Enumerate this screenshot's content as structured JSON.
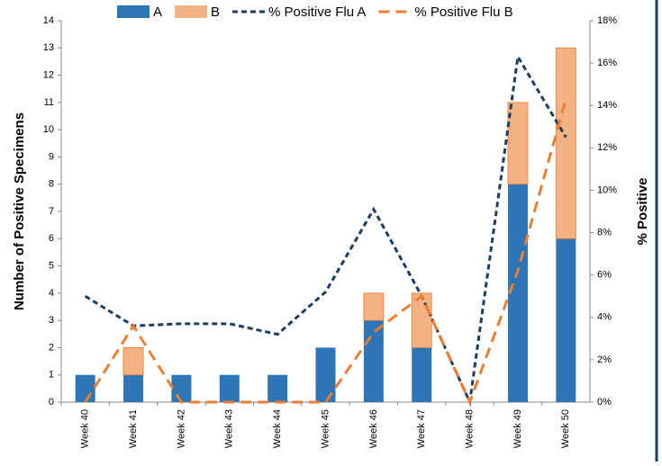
{
  "chart_data": {
    "type": "bar",
    "stacked": true,
    "categories": [
      "Week 40",
      "Week 41",
      "Week 42",
      "Week 43",
      "Week 44",
      "Week 45",
      "Week 46",
      "Week 47",
      "Week 48",
      "Week 49",
      "Week 50"
    ],
    "series": [
      {
        "name": "A",
        "color": "#2e75b6",
        "values": [
          1,
          1,
          1,
          1,
          1,
          2,
          3,
          2,
          0,
          8,
          6
        ]
      },
      {
        "name": "B",
        "color": "#f4b183",
        "values": [
          0,
          1,
          0,
          0,
          0,
          0,
          1,
          2,
          0,
          3,
          7
        ]
      },
      {
        "name": "% Positive Flu A",
        "type": "line",
        "axis": "y2",
        "color": "#1f3d5c",
        "values": [
          5.0,
          3.6,
          3.7,
          3.7,
          3.2,
          5.2,
          9.1,
          5.0,
          0,
          16.3,
          12.5
        ]
      },
      {
        "name": "% Positive Flu B",
        "type": "line",
        "axis": "y2",
        "color": "#ed7d31",
        "values": [
          0,
          3.6,
          0,
          0,
          0,
          0,
          3.3,
          5.0,
          0,
          6.2,
          14.3
        ]
      }
    ],
    "ylabel": "Number of Positive Specimens",
    "y2label": "% Positive",
    "ylim": [
      0,
      14
    ],
    "yticks": [
      0,
      1,
      2,
      3,
      4,
      5,
      6,
      7,
      8,
      9,
      10,
      11,
      12,
      13,
      14
    ],
    "y2lim": [
      0,
      18
    ],
    "y2ticks": [
      {
        "value": 0,
        "label": "0%"
      },
      {
        "value": 2,
        "label": "2%"
      },
      {
        "value": 4,
        "label": "4%"
      },
      {
        "value": 6,
        "label": "6%"
      },
      {
        "value": 8,
        "label": "8%"
      },
      {
        "value": 10,
        "label": "10%"
      },
      {
        "value": 12,
        "label": "12%"
      },
      {
        "value": 14,
        "label": "14%"
      },
      {
        "value": 16,
        "label": "16%"
      },
      {
        "value": 18,
        "label": "18%"
      }
    ],
    "legend": "top"
  }
}
